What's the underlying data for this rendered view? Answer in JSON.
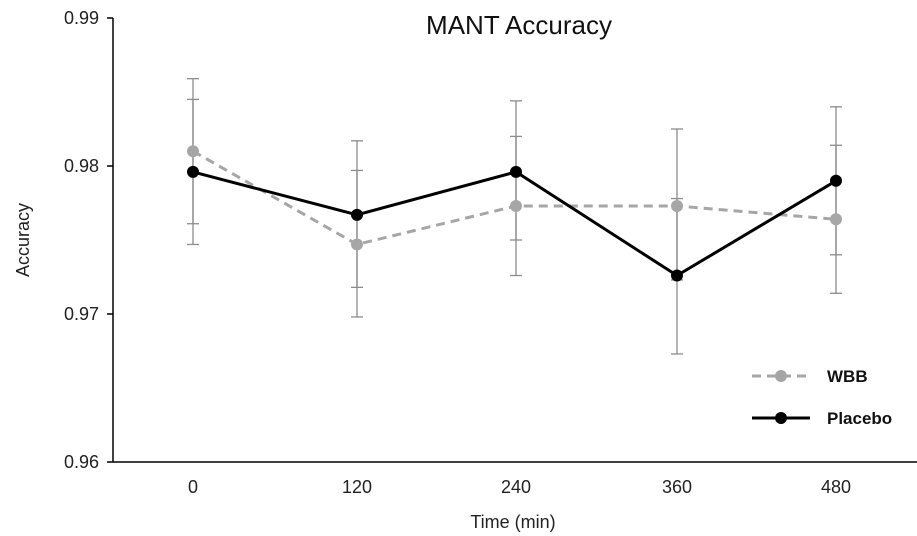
{
  "chart_data": {
    "type": "line",
    "title": "MANT Accuracy",
    "xlabel": "Time (min)",
    "ylabel": "Accuracy",
    "categories": [
      "0",
      "120",
      "240",
      "360",
      "480"
    ],
    "ylim": [
      0.96,
      0.99
    ],
    "yticks": [
      "0.96",
      "0.97",
      "0.98",
      "0.99"
    ],
    "ytick_values": [
      0.96,
      0.97,
      0.98,
      0.99
    ],
    "grid": false,
    "legend_position": "bottom-right",
    "series": [
      {
        "name": "WBB",
        "style": "dashed",
        "color": "#a6a6a6",
        "values": [
          0.981,
          0.9747,
          0.9773,
          0.9773,
          0.9764
        ],
        "error_low": [
          0.9761,
          0.9718,
          0.975,
          0.9723,
          0.974
        ],
        "error_high": [
          0.9845,
          0.9797,
          0.982,
          0.9778,
          0.9814
        ]
      },
      {
        "name": "Placebo",
        "style": "solid",
        "color": "#000000",
        "values": [
          0.9796,
          0.9767,
          0.9796,
          0.9726,
          0.979
        ],
        "error_low": [
          0.9747,
          0.9698,
          0.9726,
          0.9673,
          0.9714
        ],
        "error_high": [
          0.9859,
          0.9817,
          0.9844,
          0.9825,
          0.984
        ]
      }
    ],
    "error_bar_color": "#8c8c8c"
  }
}
